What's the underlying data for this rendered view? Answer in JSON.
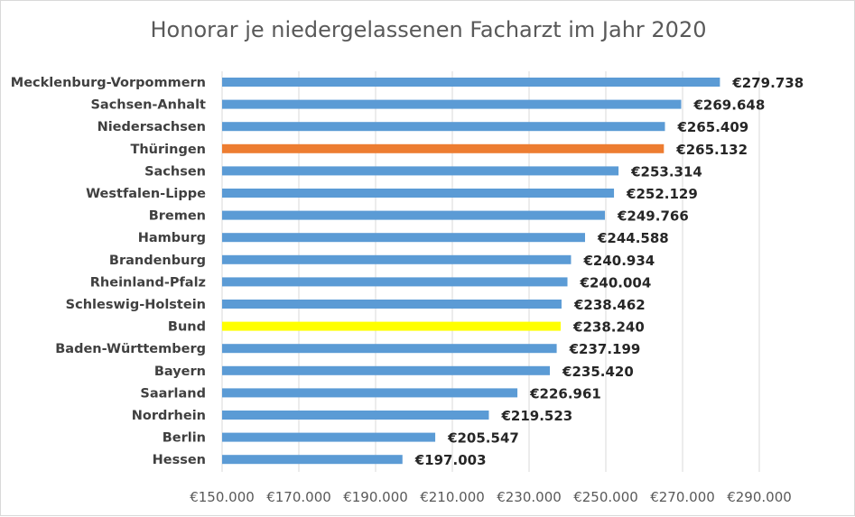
{
  "chart_data": {
    "type": "bar",
    "orientation": "horizontal",
    "title": "Honorar je niedergelassenen Facharzt im Jahr 2020",
    "xlabel": "",
    "ylabel": "",
    "xlim": [
      150000,
      290000
    ],
    "grid": true,
    "categories": [
      "Mecklenburg-Vorpommern",
      "Sachsen-Anhalt",
      "Niedersachsen",
      "Thüringen",
      "Sachsen",
      "Westfalen-Lippe",
      "Bremen",
      "Hamburg",
      "Brandenburg",
      "Rheinland-Pfalz",
      "Schleswig-Holstein",
      "Bund",
      "Baden-Württemberg",
      "Bayern",
      "Saarland",
      "Nordrhein",
      "Berlin",
      "Hessen"
    ],
    "values": [
      279738,
      269648,
      265409,
      265132,
      253314,
      252129,
      249766,
      244588,
      240934,
      240004,
      238462,
      238240,
      237199,
      235420,
      226961,
      219523,
      205547,
      197003
    ],
    "value_labels": [
      "€279.738",
      "€269.648",
      "€265.409",
      "€265.132",
      "€253.314",
      "€252.129",
      "€249.766",
      "€244.588",
      "€240.934",
      "€240.004",
      "€238.462",
      "€238.240",
      "€237.199",
      "€235.420",
      "€226.961",
      "€219.523",
      "€205.547",
      "€197.003"
    ],
    "colors": [
      "#5b9bd5",
      "#5b9bd5",
      "#5b9bd5",
      "#ed7d31",
      "#5b9bd5",
      "#5b9bd5",
      "#5b9bd5",
      "#5b9bd5",
      "#5b9bd5",
      "#5b9bd5",
      "#5b9bd5",
      "#ffff00",
      "#5b9bd5",
      "#5b9bd5",
      "#5b9bd5",
      "#5b9bd5",
      "#5b9bd5",
      "#5b9bd5"
    ],
    "ticks": [
      150000,
      170000,
      190000,
      210000,
      230000,
      250000,
      270000,
      290000
    ],
    "tick_labels": [
      "€150.000",
      "€170.000",
      "€190.000",
      "€210.000",
      "€230.000",
      "€250.000",
      "€270.000",
      "€290.000"
    ]
  }
}
